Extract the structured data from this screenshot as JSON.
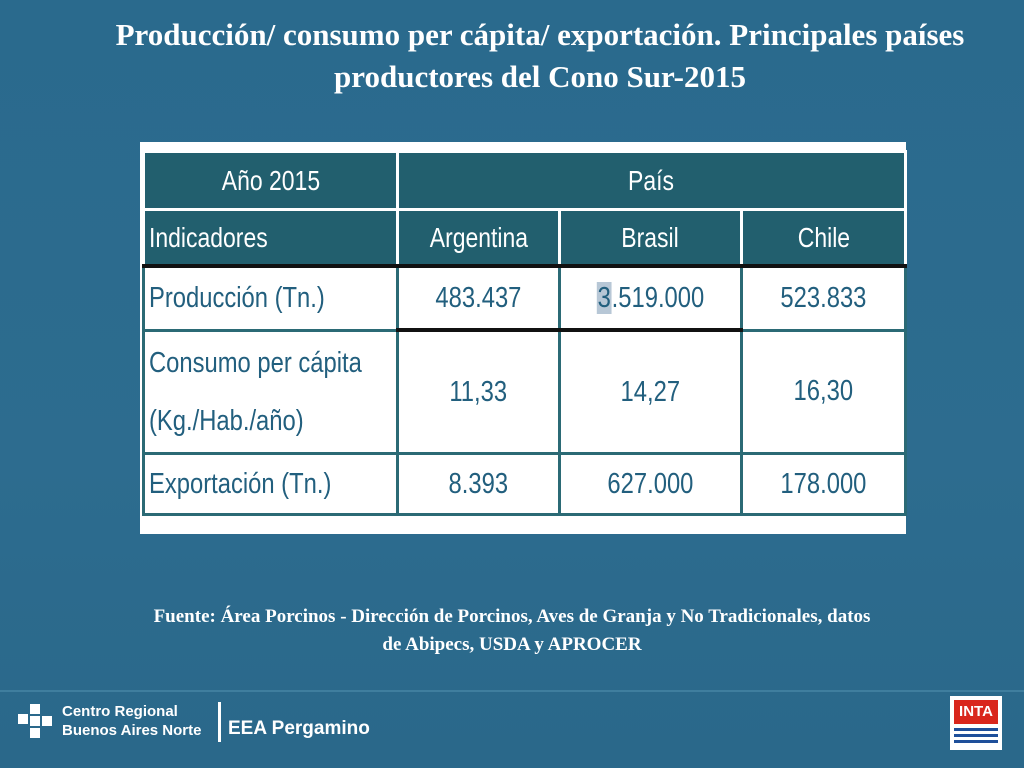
{
  "title": "Producción/ consumo per cápita/ exportación. Principales países productores del Cono Sur-2015",
  "table": {
    "year_header": "Año 2015",
    "country_group_header": "País",
    "indicators_header": "Indicadores",
    "countries": [
      "Argentina",
      "Brasil",
      "Chile"
    ],
    "rows": [
      {
        "label": "Producción (Tn.)",
        "values": [
          "483.437",
          "3.519.000",
          "523.833"
        ]
      },
      {
        "label_line1": "Consumo per cápita",
        "label_line2": "(Kg./Hab./año)",
        "values": [
          "11,33",
          "14,27",
          "16,30"
        ]
      },
      {
        "label": "Exportación (Tn.)",
        "values": [
          "8.393",
          "627.000",
          "178.000"
        ]
      }
    ],
    "brasil_first_digit": "3",
    "brasil_rest": ".519.000"
  },
  "source_note": "Fuente: Área Porcinos - Dirección de Porcinos, Aves de Granja y No Tradicionales, datos de Abipecs, USDA y APROCER",
  "footer": {
    "center_line1": "Centro Regional",
    "center_line2": "Buenos Aires Norte",
    "station": "EEA Pergamino",
    "logo_text": "INTA"
  },
  "colors": {
    "background": "#2b6b8e",
    "header_fill": "#225f6e",
    "cell_text": "#225f7e",
    "inta_red": "#d9261c"
  }
}
